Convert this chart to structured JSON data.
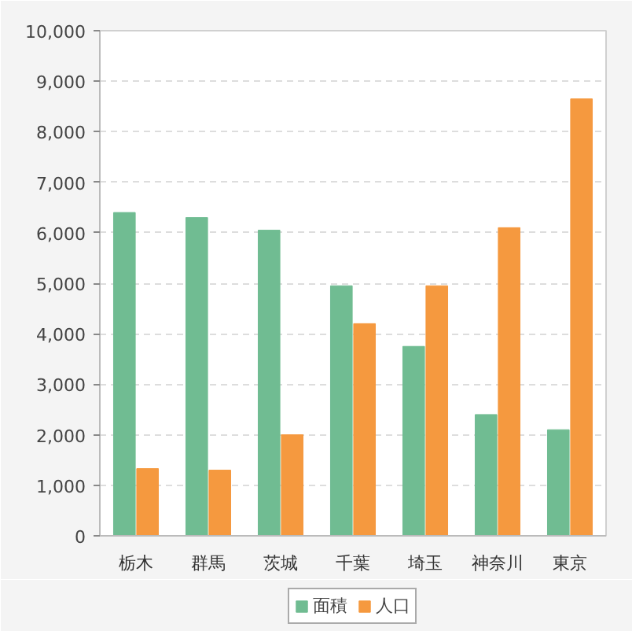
{
  "chart_data": {
    "type": "bar",
    "categories": [
      "栃木",
      "群馬",
      "茨城",
      "千葉",
      "埼玉",
      "神奈川",
      "東京"
    ],
    "series": [
      {
        "name": "面積",
        "color": "#70bc92",
        "values": [
          6400,
          6300,
          6050,
          4950,
          3750,
          2400,
          2100
        ]
      },
      {
        "name": "人口",
        "color": "#f5993f",
        "values": [
          1330,
          1300,
          2000,
          4200,
          4950,
          6100,
          8650
        ]
      }
    ],
    "ylim": [
      0,
      10000
    ],
    "yticks": [
      0,
      {
        "value": 1000,
        "label": "1,000"
      },
      {
        "value": 2000,
        "label": "2,000"
      },
      {
        "value": 3000,
        "label": "3,000"
      },
      {
        "value": 4000,
        "label": "4,000"
      },
      {
        "value": 5000,
        "label": "5,000"
      },
      {
        "value": 6000,
        "label": "6,000"
      },
      {
        "value": 7000,
        "label": "7,000"
      },
      {
        "value": 8000,
        "label": "8,000"
      },
      {
        "value": 9000,
        "label": "9,000"
      },
      {
        "value": 10000,
        "label": "10,000"
      }
    ],
    "grid": "y",
    "legend": "bottom"
  }
}
